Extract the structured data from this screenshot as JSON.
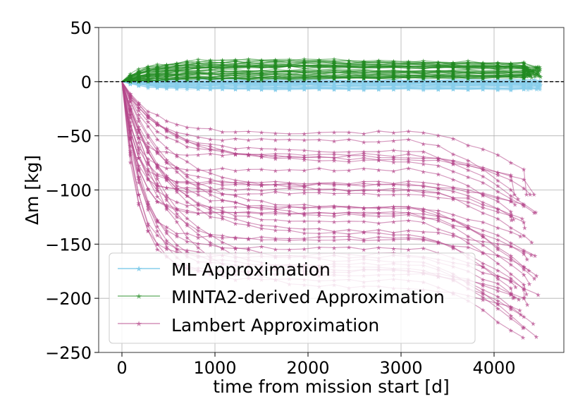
{
  "chart_data": {
    "type": "line",
    "title": "",
    "xlabel": "time from mission start [d]",
    "ylabel": "Δm [kg]",
    "xlim": [
      -250,
      4750
    ],
    "ylim": [
      -250,
      50
    ],
    "xticks": [
      0,
      1000,
      2000,
      3000,
      4000
    ],
    "yticks": [
      50,
      0,
      -50,
      -100,
      -150,
      -200,
      -250
    ],
    "xtick_labels": [
      "0",
      "1000",
      "2000",
      "3000",
      "4000"
    ],
    "ytick_labels": [
      "50",
      "0",
      "−50",
      "−100",
      "−150",
      "−200",
      "−250"
    ],
    "grid": true,
    "reference_line": {
      "y": 0,
      "style": "dashed",
      "color": "#000000"
    },
    "legend": {
      "position": "lower-left",
      "entries": [
        "ML Approximation",
        "MINTA2-derived Approximation",
        "Lambert Approximation"
      ]
    },
    "series": [
      {
        "name": "ML Approximation",
        "color": "#87ceeb",
        "marker": "star",
        "count": 45,
        "final_range": [
          -8,
          3
        ]
      },
      {
        "name": "MINTA2-derived Approximation",
        "color": "#228b22",
        "marker": "star",
        "count": 45,
        "final_range": [
          0,
          16
        ]
      },
      {
        "name": "Lambert Approximation",
        "color": "#b5478b",
        "marker": "star",
        "count": 36,
        "final_range": [
          -236,
          -104
        ]
      }
    ]
  }
}
